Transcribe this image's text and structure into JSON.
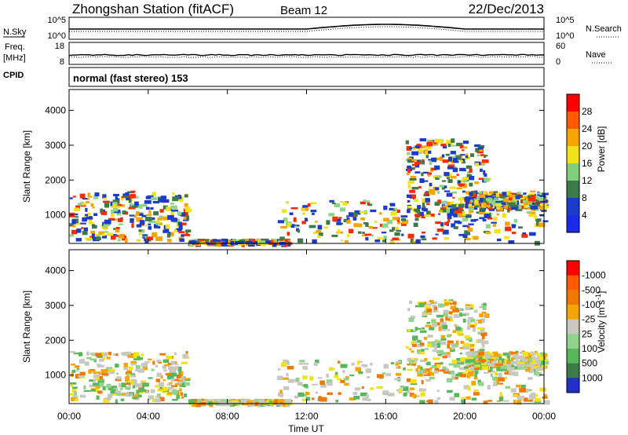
{
  "header": {
    "station": "Zhongshan Station (fitACF)",
    "beam": "Beam 12",
    "date": "22/Dec/2013"
  },
  "strip_nsky": {
    "left_label": "N.Sky",
    "left_ticks": [
      "10^5",
      "10^0"
    ],
    "right_label": "N.Search",
    "right_ticks": [
      "10^5",
      "10^0"
    ]
  },
  "strip_freq": {
    "left_label_1": "Freq.",
    "left_label_2": "[MHz]",
    "left_ticks": [
      "18",
      "8"
    ],
    "right_label": "Nave",
    "right_ticks": [
      "60",
      "0"
    ]
  },
  "cpid": {
    "label": "CPID",
    "value": "normal (fast stereo) 153"
  },
  "colors": {
    "white": "#ffffff",
    "blue": "#1a3cc8",
    "dark_green": "#3c7a48",
    "green": "#56b85a",
    "light_green": "#8fd48a",
    "yellow": "#f2e21a",
    "orange": "#f5a500",
    "dark_orange": "#f07800",
    "red": "#ff2a00",
    "gray": "#c8c8c0",
    "navy": "#1a1aa0"
  },
  "chart_data": [
    {
      "type": "heatmap",
      "title": "",
      "ylabel": "Slant Range [km]",
      "xlabel": "",
      "ylim": [
        180,
        4600
      ],
      "y_ticks": [
        "1000",
        "2000",
        "3000",
        "4000"
      ],
      "x_ticks": [
        "00:00",
        "04:00",
        "08:00",
        "12:00",
        "16:00",
        "20:00",
        "00:00"
      ],
      "colorbar": {
        "label": "Power [dB]",
        "ticks": [
          "4",
          "8",
          "12",
          "16",
          "20",
          "24",
          "28"
        ],
        "colors": [
          "#1a2ae6",
          "#1a3cc8",
          "#3c7a48",
          "#7fce7a",
          "#f2e21a",
          "#f5a500",
          "#ff5a00",
          "#ff0000"
        ]
      }
    },
    {
      "type": "heatmap",
      "title": "",
      "ylabel": "Slant Range [km]",
      "xlabel": "Time UT",
      "ylim": [
        180,
        4600
      ],
      "y_ticks": [
        "1000",
        "2000",
        "3000",
        "4000"
      ],
      "x_ticks": [
        "00:00",
        "04:00",
        "08:00",
        "12:00",
        "16:00",
        "20:00",
        "00:00"
      ],
      "colorbar": {
        "label": "Velocity [m s^-1]",
        "ticks": [
          "1000",
          "500",
          "100",
          "25",
          "-25",
          "-100",
          "-500",
          "-1000"
        ],
        "colors": [
          "#2030c8",
          "#3c7a48",
          "#56b85a",
          "#8fd48a",
          "#c8c8c0",
          "#f5a500",
          "#f07800",
          "#ff5a00",
          "#ff0000"
        ]
      }
    }
  ]
}
